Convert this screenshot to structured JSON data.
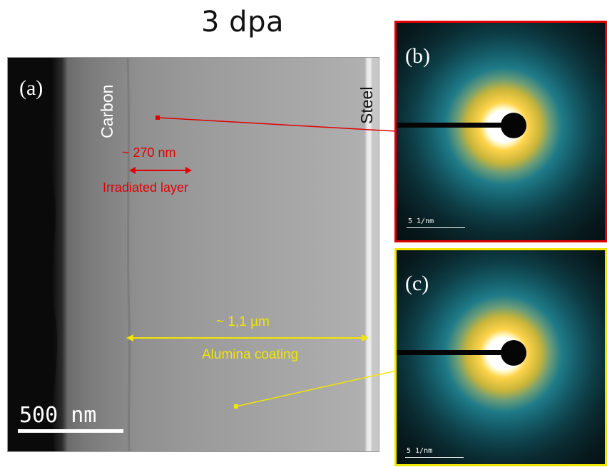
{
  "figure": {
    "title": "3 dpa",
    "panel_a": {
      "label": "(a)",
      "carbon_label": "Carbon",
      "steel_label": "Steel",
      "irradiated_thickness": "~ 270 nm",
      "irradiated_label": "Irradiated layer",
      "coating_thickness": "~ 1,1 µm",
      "coating_label": "Alumina coating",
      "scale_bar": "500 nm"
    },
    "panel_b": {
      "label": "(b)",
      "scale_bar": "5 1/nm",
      "border_color": "#e00000"
    },
    "panel_c": {
      "label": "(c)",
      "scale_bar": "5 1/nm",
      "border_color": "#f2e600"
    }
  }
}
